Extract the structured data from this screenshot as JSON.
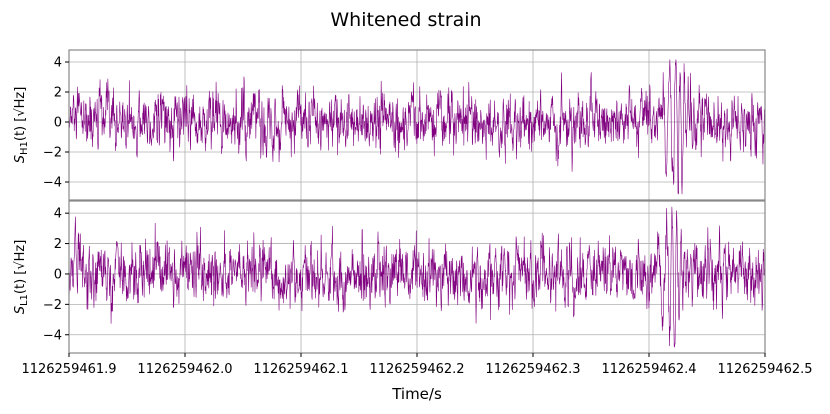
{
  "chart_data": [
    {
      "type": "line",
      "title": "Whitened strain",
      "ylabel": "s_H1(t) [/√Hz]",
      "ylabel_main": "S",
      "ylabel_sub": "H1",
      "ylabel_unit": "(t) [√Hz]",
      "xlim": [
        1126259461.9,
        1126259462.5
      ],
      "ylim": [
        -5.2,
        4.8
      ],
      "yticks": [
        -4,
        -2,
        0,
        2,
        4
      ],
      "ytick_labels": [
        "−4",
        "−2",
        "0",
        "2",
        "4"
      ],
      "grid": true,
      "color": "#800080",
      "series": [
        {
          "sigma": 1.0,
          "x_range": [
            1126259461.9,
            1126259462.5
          ],
          "chirp": {
            "x_peak": 1126259462.423,
            "y_values": [
              4.3,
              -4.5,
              3.7,
              -3.2,
              2.5
            ]
          }
        }
      ]
    },
    {
      "type": "line",
      "xlabel": "Time/s",
      "ylabel_main": "S",
      "ylabel_sub": "L1",
      "ylabel_unit": "(t) [√Hz]",
      "xlim": [
        1126259461.9,
        1126259462.5
      ],
      "ylim": [
        -5.2,
        4.8
      ],
      "yticks": [
        -4,
        -2,
        0,
        2,
        4
      ],
      "ytick_labels": [
        "−4",
        "−2",
        "0",
        "2",
        "4"
      ],
      "xticks": [
        1126259461.9,
        1126259462.0,
        1126259462.1,
        1126259462.2,
        1126259462.3,
        1126259462.4,
        1126259462.5
      ],
      "xtick_labels": [
        "1126259461.9",
        "1126259462.0",
        "1126259462.1",
        "1126259462.2",
        "1126259462.3",
        "1126259462.4",
        "1126259462.5"
      ],
      "grid": true,
      "color": "#800080",
      "series": [
        {
          "sigma": 1.0,
          "x_range": [
            1126259461.9,
            1126259462.5
          ],
          "chirp": {
            "x_peak": 1126259462.42,
            "y_values": [
              4.0,
              -4.7,
              3.5,
              -3.0,
              2.4
            ]
          }
        }
      ]
    }
  ]
}
